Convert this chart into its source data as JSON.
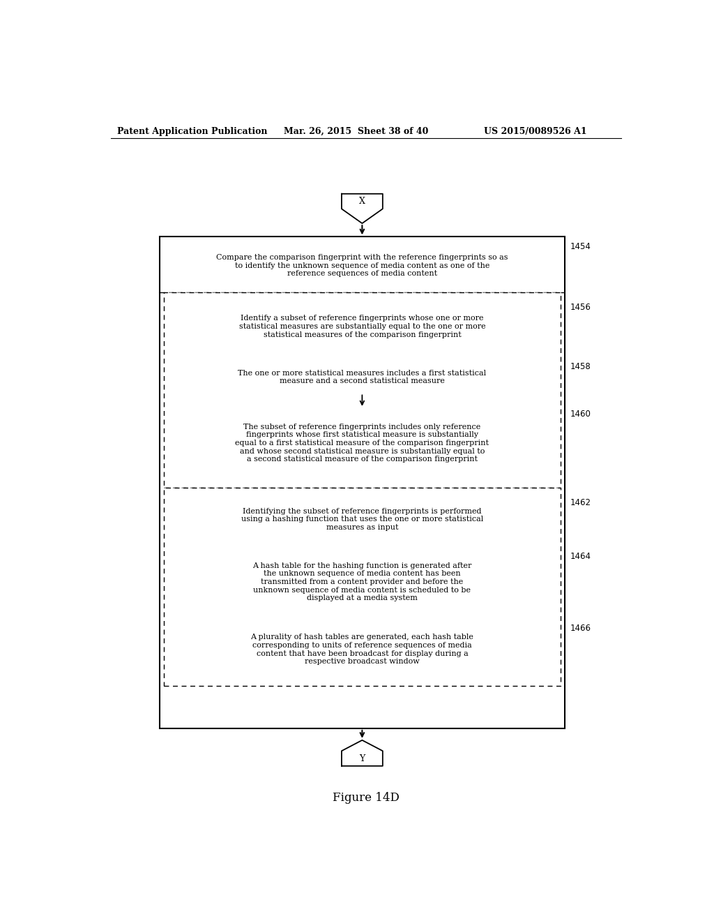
{
  "header_left": "Patent Application Publication",
  "header_mid": "Mar. 26, 2015  Sheet 38 of 40",
  "header_right": "US 2015/0089526 A1",
  "figure_label": "Figure 14D",
  "connector_top": "X",
  "connector_bottom": "Y",
  "block_1454_text": "Compare the comparison fingerprint with the reference fingerprints so as\nto identify the unknown sequence of media content as one of the\nreference sequences of media content",
  "block_1456_text": "Identify a subset of reference fingerprints whose one or more\nstatistical measures are substantially equal to the one or more\nstatistical measures of the comparison fingerprint",
  "block_1458_text": "The one or more statistical measures includes a first statistical\nmeasure and a second statistical measure",
  "block_1460_text": "The subset of reference fingerprints includes only reference\nfingerprints whose first statistical measure is substantially\nequal to a first statistical measure of the comparison fingerprint\nand whose second statistical measure is substantially equal to\na second statistical measure of the comparison fingerprint",
  "block_1462_text": "Identifying the subset of reference fingerprints is performed\nusing a hashing function that uses the one or more statistical\nmeasures as input",
  "block_1464_text": "A hash table for the hashing function is generated after\nthe unknown sequence of media content has been\ntransmitted from a content provider and before the\nunknown sequence of media content is scheduled to be\ndisplayed at a media system",
  "block_1466_text": "A plurality of hash tables are generated, each hash table\ncorresponding to units of reference sequences of media\ncontent that have been broadcast for display during a\nrespective broadcast window",
  "bg_color": "#ffffff",
  "text_color": "#000000",
  "font_size": 8.0,
  "label_font_size": 8.5
}
